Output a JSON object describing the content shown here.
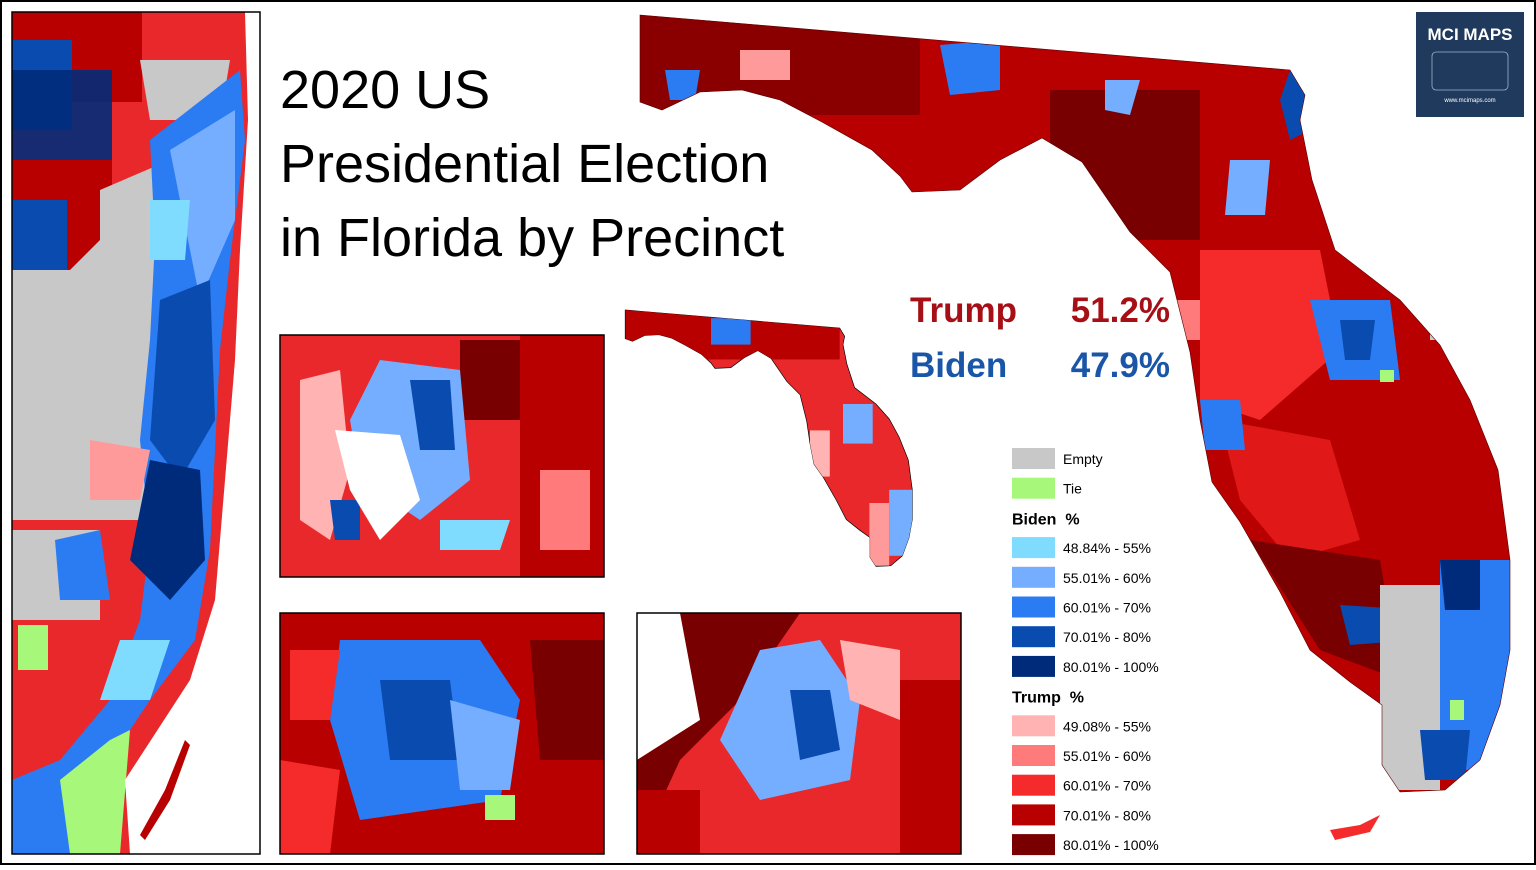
{
  "title_lines": [
    "2020 US",
    "Presidential Election",
    "in Florida by Precinct"
  ],
  "results": [
    {
      "name": "Trump",
      "value": "51.2%",
      "color": "#a50f15"
    },
    {
      "name": "Biden",
      "value": "47.9%",
      "color": "#1a56a8"
    }
  ],
  "logo": {
    "title": "MCI MAPS",
    "url": "www.mcimaps.com",
    "color": "#1f3a5c"
  },
  "legend": {
    "other": [
      {
        "label": "Empty",
        "color": "#c8c8c8"
      },
      {
        "label": "Tie",
        "color": "#a6f77a"
      }
    ],
    "groups": [
      {
        "title": "Biden  %",
        "items": [
          {
            "label": "48.84% - 55%",
            "color": "#7fdcff"
          },
          {
            "label": "55.01% - 60%",
            "color": "#75adff"
          },
          {
            "label": "60.01% - 70%",
            "color": "#2b7bf2"
          },
          {
            "label": "70.01% - 80%",
            "color": "#0a4bb0"
          },
          {
            "label": "80.01% - 100%",
            "color": "#002b7a"
          }
        ]
      },
      {
        "title": "Trump  %",
        "items": [
          {
            "label": "49.08% - 55%",
            "color": "#ffb3b3"
          },
          {
            "label": "55.01% - 60%",
            "color": "#ff7b7b"
          },
          {
            "label": "60.01% - 70%",
            "color": "#f52a2a"
          },
          {
            "label": "70.01% - 80%",
            "color": "#b80000"
          },
          {
            "label": "80.01% - 100%",
            "color": "#780000"
          }
        ]
      }
    ]
  }
}
